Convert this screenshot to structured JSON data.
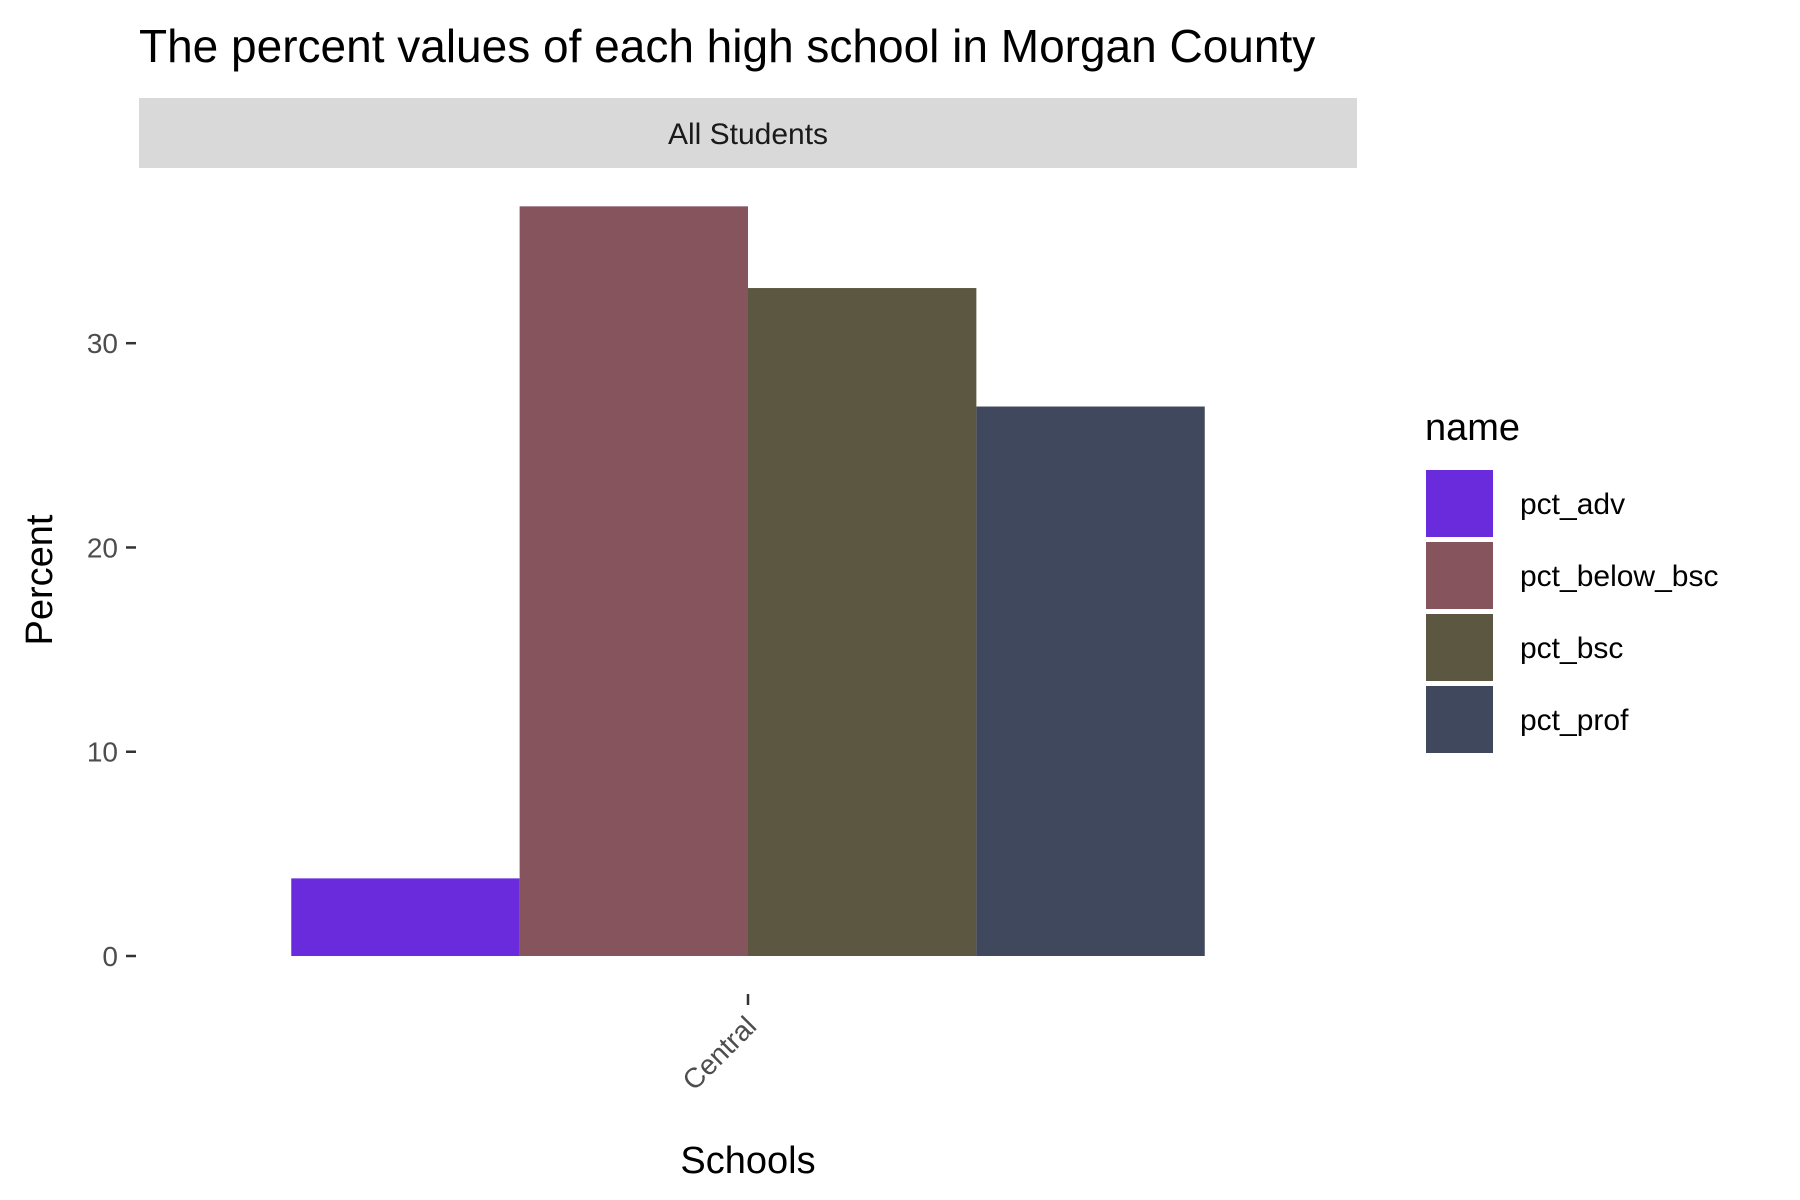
{
  "chart_data": {
    "type": "bar",
    "title": "The percent values of each high school in Morgan County",
    "facet_label": "All Students",
    "xlabel": "Schools",
    "ylabel": "Percent",
    "categories": [
      "Central"
    ],
    "ylim": [
      0,
      37.5
    ],
    "y_ticks": [
      0,
      10,
      20,
      30
    ],
    "grid": false,
    "legend": {
      "title": "name",
      "position": "right"
    },
    "series": [
      {
        "name": "pct_adv",
        "values": [
          3.8
        ],
        "color": "#6A2BDD"
      },
      {
        "name": "pct_below_bsc",
        "values": [
          36.7
        ],
        "color": "#85545D"
      },
      {
        "name": "pct_bsc",
        "values": [
          32.7
        ],
        "color": "#5C5740"
      },
      {
        "name": "pct_prof",
        "values": [
          26.9
        ],
        "color": "#3F485C"
      }
    ]
  }
}
